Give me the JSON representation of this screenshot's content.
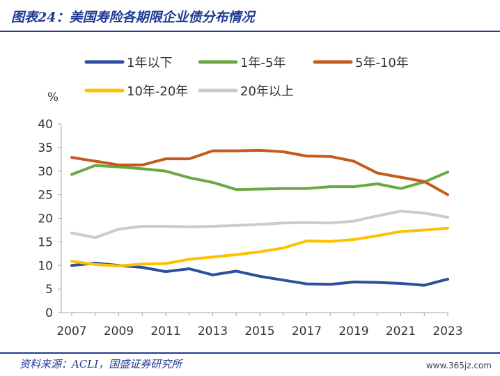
{
  "title": "图表24：美国寿险各期限企业债分布情况",
  "source": "资料来源：ACLI，国盛证券研究所",
  "watermark": "www.365jz.com",
  "chart_data": {
    "type": "line",
    "title": "",
    "xlabel": "",
    "ylabel": "%",
    "ylim": [
      0,
      40
    ],
    "yticks": [
      0,
      5,
      10,
      15,
      20,
      25,
      30,
      35,
      40
    ],
    "x": [
      2007,
      2008,
      2009,
      2010,
      2011,
      2012,
      2013,
      2014,
      2015,
      2016,
      2017,
      2018,
      2019,
      2020,
      2021,
      2022,
      2023
    ],
    "xticks": [
      "2007",
      "2009",
      "2011",
      "2013",
      "2015",
      "2017",
      "2019",
      "2021",
      "2023"
    ],
    "grid": false,
    "legend": "top",
    "series": [
      {
        "name": "1年以下",
        "color": "#2e4f9c",
        "values": [
          10.0,
          10.5,
          10.0,
          9.6,
          8.7,
          9.3,
          8.0,
          8.8,
          7.7,
          6.9,
          6.1,
          6.0,
          6.5,
          6.4,
          6.2,
          5.8,
          7.1
        ]
      },
      {
        "name": "1年-5年",
        "color": "#6aa842",
        "values": [
          29.3,
          31.2,
          30.9,
          30.5,
          30.0,
          28.6,
          27.6,
          26.1,
          26.2,
          26.3,
          26.3,
          26.7,
          26.7,
          27.3,
          26.3,
          27.7,
          29.8
        ]
      },
      {
        "name": "5年-10年",
        "color": "#c55a1c",
        "values": [
          32.9,
          32.1,
          31.3,
          31.3,
          32.6,
          32.6,
          34.3,
          34.3,
          34.4,
          34.1,
          33.2,
          33.1,
          32.1,
          29.6,
          28.7,
          27.8,
          25.0
        ]
      },
      {
        "name": "10年-20年",
        "color": "#ffc000",
        "values": [
          10.9,
          10.2,
          9.9,
          10.3,
          10.4,
          11.3,
          11.8,
          12.3,
          12.9,
          13.7,
          15.2,
          15.1,
          15.5,
          16.3,
          17.2,
          17.5,
          17.9
        ]
      },
      {
        "name": "20年以上",
        "color": "#cbcbcb",
        "values": [
          16.9,
          15.9,
          17.7,
          18.3,
          18.3,
          18.2,
          18.3,
          18.5,
          18.7,
          19.0,
          19.1,
          19.0,
          19.4,
          20.5,
          21.5,
          21.1,
          20.2
        ]
      }
    ]
  }
}
